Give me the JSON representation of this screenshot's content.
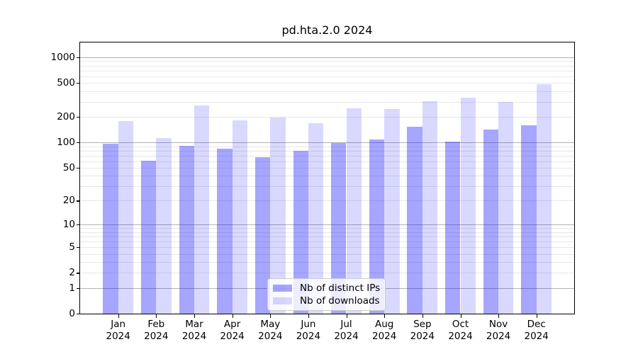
{
  "chart_data": {
    "type": "bar",
    "title": "pd.hta.2.0 2024",
    "categories": [
      "Jan",
      "Feb",
      "Mar",
      "Apr",
      "May",
      "Jun",
      "Jul",
      "Aug",
      "Sep",
      "Oct",
      "Nov",
      "Dec"
    ],
    "year": "2024",
    "series": [
      {
        "name": "Nb of distinct IPs",
        "color": "rgba(0,0,255,0.35)",
        "values": [
          97,
          61,
          91,
          85,
          67,
          80,
          99,
          108,
          153,
          102,
          143,
          160
        ]
      },
      {
        "name": "Nb of downloads",
        "color": "rgba(0,0,255,0.15)",
        "values": [
          180,
          112,
          271,
          181,
          198,
          169,
          251,
          248,
          307,
          336,
          298,
          483
        ]
      }
    ],
    "xlabel": "",
    "ylabel": "",
    "yscale": "log1p",
    "ylim": [
      0,
      1490
    ],
    "ytick_labels": [
      1000,
      500,
      200,
      100,
      50,
      20,
      10,
      5,
      2,
      1,
      0
    ],
    "grid": {
      "on": true,
      "major_ticks": [
        1,
        10,
        100,
        1000
      ],
      "major_color": "#b2b2b2",
      "minor_color": "#e8e8e8"
    },
    "legend_position": "lower center",
    "spine_color": "#000000"
  }
}
